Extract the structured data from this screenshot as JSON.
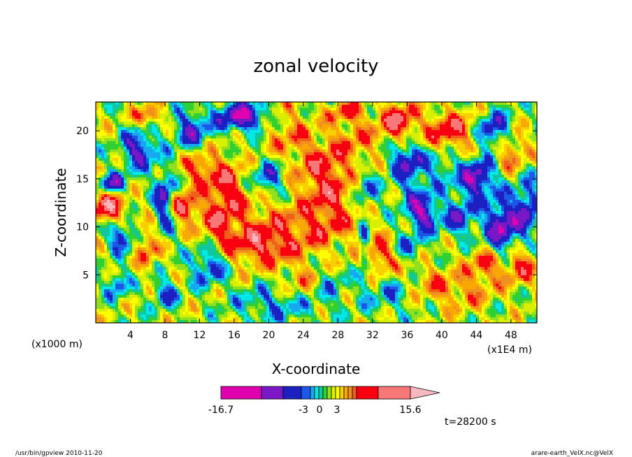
{
  "chart_data": {
    "type": "heatmap",
    "title": "zonal velocity",
    "xlabel": "X-coordinate",
    "ylabel": "Z-coordinate",
    "x_units": "(x1E4 m)",
    "y_units": "(x1000 m)",
    "xlim": [
      0,
      51
    ],
    "ylim": [
      0,
      23
    ],
    "x_ticks": [
      4,
      8,
      12,
      16,
      20,
      24,
      28,
      32,
      36,
      40,
      44,
      48
    ],
    "y_ticks": [
      5,
      10,
      15,
      20
    ],
    "colorbar": {
      "levels": [
        -16.7,
        -12,
        -9,
        -6,
        -5,
        -4,
        -3,
        -2,
        -1,
        0,
        1,
        2,
        3,
        4,
        5,
        6,
        9,
        12,
        15.6
      ],
      "colors": [
        "#e000b0",
        "#7a18c8",
        "#1c20c0",
        "#1c58e8",
        "#18a8f0",
        "#00e8e8",
        "#10c8a0",
        "#30d030",
        "#90e020",
        "#d8f000",
        "#ffff00",
        "#f8d000",
        "#f8a800",
        "#f09020",
        "#f06018",
        "#f80010",
        "#f87878",
        "#f8b8c0"
      ],
      "tick_labels": [
        "-16.7",
        "-3",
        "0",
        "3",
        "15.6"
      ]
    },
    "time_label": "t=28200 s"
  },
  "footer": {
    "left": "/usr/bin/gpview   2010-11-20",
    "right": "arare-earth_VelX.nc@VelX"
  }
}
